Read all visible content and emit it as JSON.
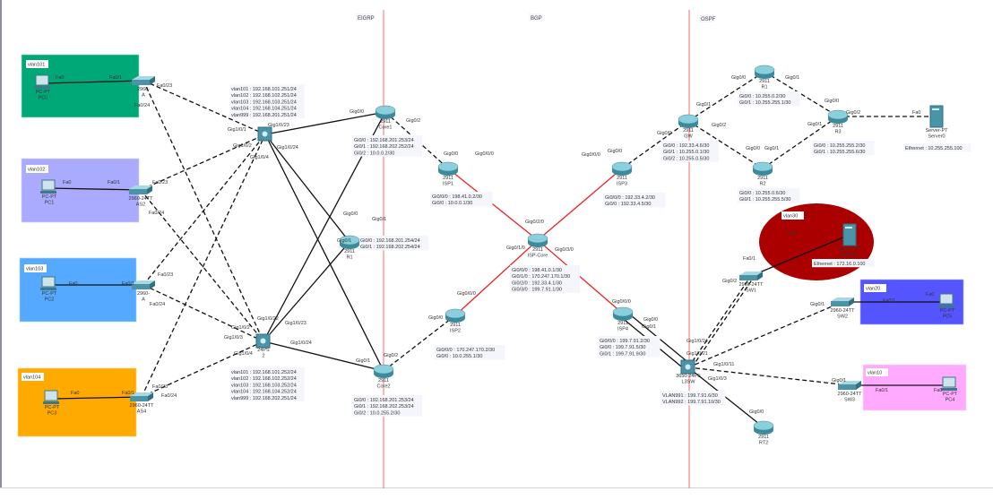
{
  "areas": {
    "eigrp": "EIGRP",
    "bgp": "BGP",
    "ospf": "OSPF"
  },
  "colors": {
    "area_divider": "#ff5a5a",
    "isp_link": "#ee2222",
    "vlan101": "#00a878",
    "vlan102": "#aaaaff",
    "vlan103": "#55aaff",
    "vlan104": "#ffaa00",
    "vlan30": "#aa0000",
    "vlan20": "#5555ff",
    "vlan10": "#ffaaff"
  },
  "vlans": {
    "vlan101": "vlan101",
    "vlan102": "vlan102",
    "vlan103": "vlan103",
    "vlan104": "vlan104",
    "vlan30": "vlan30",
    "vlan20": "vlan20",
    "vlan10": "vlan10"
  },
  "devices": [
    {
      "type": "pc",
      "model": "PC-PT",
      "name": "PC0"
    },
    {
      "type": "switch",
      "model": "2960-",
      "name": "A"
    },
    {
      "type": "pc",
      "model": "PC-PT",
      "name": "PC1"
    },
    {
      "type": "switch",
      "model": "2960-24TT",
      "name": "AS2"
    },
    {
      "type": "pc",
      "model": "PC-PT",
      "name": "PC2"
    },
    {
      "type": "switch",
      "model": "2960-",
      "name": "A"
    },
    {
      "type": "pc",
      "model": "PC-PT",
      "name": "PC3"
    },
    {
      "type": "switch",
      "model": "2960-24TT",
      "name": "AS4"
    },
    {
      "type": "mls",
      "model": "",
      "name": ""
    },
    {
      "type": "mls",
      "model": "24PS",
      "name": "2"
    },
    {
      "type": "router",
      "model": "2911",
      "name": "Core1"
    },
    {
      "type": "router",
      "model": "2911",
      "name": "R1"
    },
    {
      "type": "router",
      "model": "2911",
      "name": "Core2"
    },
    {
      "type": "router",
      "model": "2911",
      "name": "ISP1"
    },
    {
      "type": "router",
      "model": "2911",
      "name": "ISP-Core"
    },
    {
      "type": "router",
      "model": "2911",
      "name": "ISP3"
    },
    {
      "type": "router",
      "model": "2911",
      "name": "ISP2"
    },
    {
      "type": "router",
      "model": "2911",
      "name": "ISP4"
    },
    {
      "type": "router",
      "model": "2911",
      "name": "GW"
    },
    {
      "type": "router",
      "model": "2911",
      "name": "R1"
    },
    {
      "type": "router",
      "model": "2911",
      "name": "R2"
    },
    {
      "type": "router",
      "model": "2911",
      "name": "R3"
    },
    {
      "type": "server",
      "model": "Server-PT",
      "name": "Server0"
    },
    {
      "type": "mls",
      "model": "3650-24PS",
      "name": "L3SW"
    },
    {
      "type": "switch",
      "model": "2960-24TT",
      "name": "SW1"
    },
    {
      "type": "switch",
      "model": "2960-24TT",
      "name": "SW2"
    },
    {
      "type": "switch",
      "model": "2960-24TT",
      "name": "SW3"
    },
    {
      "type": "pc",
      "model": "PC-PT",
      "name": "PC5"
    },
    {
      "type": "pc",
      "model": "PC-PT",
      "name": "PC4"
    },
    {
      "type": "server",
      "model": "Server-PT",
      "name": "Server1"
    },
    {
      "type": "router",
      "model": "2911",
      "name": "RT2"
    }
  ],
  "ip_boxes": [
    [
      "vlan101 : 192.168.101.251/24",
      "vlan102 : 192.168.102.251/24",
      "vlan103 : 192.168.103.251/24",
      "vlan104 : 192.168.104.251/24",
      "vlan999 : 192.168.201.251/24"
    ],
    [
      "vlan101 : 192.168.101.252/24",
      "vlan102 : 192.168.102.252/24",
      "vlan103 : 192.168.103.252/24",
      "vlan104 : 192.168.104.252/24",
      "vlan999 : 192.168.202.251/24"
    ],
    [
      "Gi0/0 : 192.168.201.253/24",
      "Gi0/1 : 192.168.202.252/24",
      "Gi0/2 : 10.0.0.2/30"
    ],
    [
      "Gi0/0 : 192.168.201.254/24",
      "Gi0/1 : 192.168.202.254/24"
    ],
    [
      "Gi0/0 : 192.168.201.253/24",
      "Gi0/1 : 192.168.202.253/24",
      "Gi0/2 : 10.0.255.2/30"
    ],
    [
      "Gi0/0/0 : 198.41.0.2/30",
      "Gi0/0 : 10.0.0.1/30"
    ],
    [
      "Gi0/0/0 : 198.41.0.1/30",
      "Gi0/1/0 : 170.247.170.1/30",
      "Gi0/2/0 : 192.33.4.1/30",
      "Gi0/3/0 : 199.7.91.1/30"
    ],
    [
      "Gi0/0/0 : 192.33.4.2/30",
      "Gi0/0 : 192.33.4.5/30"
    ],
    [
      "Gi0/0/0 : 170.247.170.2/30",
      "Gi0/0 : 10.0.255.1/30"
    ],
    [
      "Gi0/0/0 : 199.7.91.2/30",
      "Gi0/0 : 199.7.91.5/30",
      "Gi0/1 : 199.7.91.9/30"
    ],
    [
      "Gi0/0 : 192.33.4.6/30",
      "Gi0/1 : 10.255.0.1/30",
      "Gi0/2 : 10.255.0.5/30"
    ],
    [
      "Gi0/0 : 10.255.0.2/30",
      "Gi0/1 : 10.255.255.1/30"
    ],
    [
      "Gi0/0 : 10.255.0.6/30",
      "Gi0/1 : 10.255.255.5/30"
    ],
    [
      "Gi0/0 : 10.255.255.2/30",
      "Gi0/1 : 10.255.255.6/30"
    ],
    [
      "Ethernet : 10.255.255.100"
    ],
    [
      "VLAN991 : 199.7.91.6/30",
      "VLAN992 : 199.7.91.10/30"
    ],
    [
      "Ethernet : 172.16.0.100"
    ]
  ],
  "ports": [
    "Fa0",
    "Fa0/1",
    "Fa0/23",
    "Fa0/24",
    "Fa0",
    "Fa0/1",
    "Fa0/23",
    "Fa0/24",
    "Fa0",
    "Fa0/1",
    "Fa0/23",
    "Fa0/24",
    "Fa0",
    "Fa0/1",
    "Fa0/23",
    "Fa0/24",
    "Gig1/0/1",
    "Gig1/0/23",
    "Gig1/0/2",
    "Gig1/0/24",
    "Gig1/0/4",
    "Gig1/0/22",
    "Gig1/0/23",
    "Gig1/0/2",
    "Gig1/0/3",
    "Gig1/0/4",
    "Gig1/0/24",
    "Gig0/0",
    "Gig0/2",
    "Gig0/1",
    "Gig0/0",
    "Gig0/1",
    "Gig0/1",
    "Gig0/2",
    "Gig0/0",
    "Gig0/0/0",
    "Gig0/2/0",
    "Gig0/1/0",
    "Gig0/3/0",
    "Gig0/0/0",
    "Gig0/0",
    "Gig0/0/0",
    "Gig0/0",
    "Gig0/0/0",
    "Gig0/0",
    "Gig0/1",
    "Gig0/0",
    "Gig0/1",
    "Gig0/2",
    "Gig0/0",
    "Gig0/1",
    "Gig0/0",
    "Gig0/1",
    "Gig0/0",
    "Gig0/1",
    "Gig0/2",
    "Fa0",
    "Gig1/0/24",
    "Gig1/0/21",
    "Gig1/0/11",
    "Gig1/0/3",
    "Gig0/2",
    "Fa0/1",
    "Fa0",
    "Gig0/1",
    "Fa0/1",
    "Fa0",
    "Gig0/1",
    "Fa0/1",
    "Fa0",
    "Gig0/0"
  ]
}
